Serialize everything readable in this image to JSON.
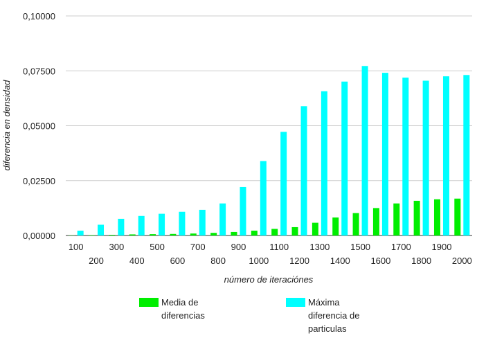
{
  "chart_data": {
    "type": "bar",
    "xlabel": "número de iteraciónes",
    "ylabel": "diferencia en densidad",
    "ylim": [
      0,
      0.1
    ],
    "yticks": [
      "0,00000",
      "0,02500",
      "0,05000",
      "0,07500",
      "0,10000"
    ],
    "ytick_values": [
      0,
      0.025,
      0.05,
      0.075,
      0.1
    ],
    "grid": true,
    "legend_position": "bottom",
    "categories": [
      "100",
      "200",
      "300",
      "400",
      "500",
      "600",
      "700",
      "800",
      "900",
      "1000",
      "1100",
      "1200",
      "1300",
      "1400",
      "1500",
      "1600",
      "1700",
      "1800",
      "1900",
      "2000"
    ],
    "series": [
      {
        "name_lines": [
          "Media de",
          "diferencias"
        ],
        "color": "#00ee00",
        "values": [
          0.0001,
          0.0002,
          0.0003,
          0.0005,
          0.0006,
          0.0007,
          0.0009,
          0.0012,
          0.0016,
          0.0022,
          0.003,
          0.0038,
          0.0058,
          0.0082,
          0.0102,
          0.0125,
          0.0146,
          0.0158,
          0.0165,
          0.0168
        ]
      },
      {
        "name_lines": [
          "Máxima",
          "diferencia de",
          "particulas"
        ],
        "color": "#00ffff",
        "values": [
          0.0022,
          0.0049,
          0.0076,
          0.0089,
          0.0099,
          0.0108,
          0.0117,
          0.0146,
          0.0221,
          0.0339,
          0.0472,
          0.0589,
          0.0657,
          0.0701,
          0.0772,
          0.0741,
          0.0719,
          0.0705,
          0.0725,
          0.0731
        ]
      }
    ]
  }
}
